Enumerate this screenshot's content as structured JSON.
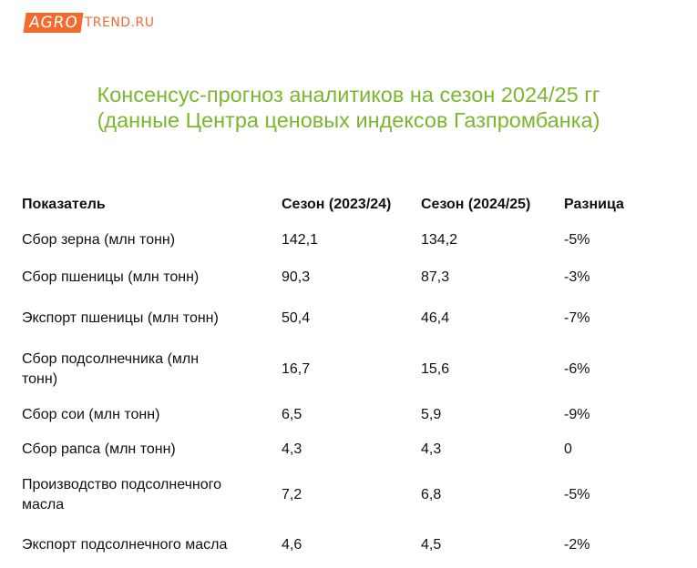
{
  "logo": {
    "highlight": "AGRO",
    "rest": "TREND.RU",
    "color": "#f26a2e"
  },
  "title": {
    "line1": "Консенсус-прогноз аналитиков на сезон 2024/25 гг",
    "line2": "(данные Центра ценовых индексов Газпромбанка)",
    "color": "#7ab62e"
  },
  "table": {
    "headers": [
      "Показатель",
      "Сезон (2023/24)",
      "Сезон (2024/25)",
      "Разница"
    ],
    "rows": [
      [
        "Сбор зерна (млн тонн)",
        "142,1",
        "134,2",
        "-5%"
      ],
      [
        "Сбор пшеницы (млн тонн)",
        "90,3",
        "87,3",
        "-3%"
      ],
      [
        "Экспорт пшеницы (млн тонн)",
        "50,4",
        "46,4",
        "-7%"
      ],
      [
        "Сбор подсолнечника (млн тонн)",
        "16,7",
        "15,6",
        "-6%"
      ],
      [
        "Сбор сои (млн тонн)",
        "6,5",
        "5,9",
        "-9%"
      ],
      [
        "Сбор рапса (млн тонн)",
        "4,3",
        "4,3",
        "0"
      ],
      [
        "Производство подсолнечного масла",
        "7,2",
        "6,8",
        "-5%"
      ],
      [
        "Экспорт подсолнечного масла",
        "4,6",
        "4,5",
        "-2%"
      ]
    ]
  }
}
